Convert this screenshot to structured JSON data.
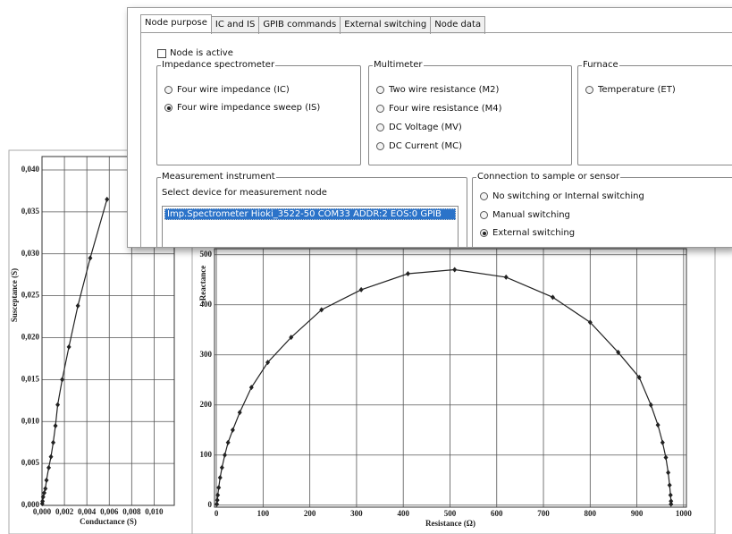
{
  "chart_data": [
    {
      "type": "line",
      "x_label": "Conductance (S)",
      "y_label": "Susceptance (S)",
      "color": "#222222",
      "grid": true,
      "x": [
        2e-05,
        5e-05,
        0.0001,
        0.0002,
        0.0003,
        0.0004,
        0.0006,
        0.0008,
        0.001,
        0.0012,
        0.0014,
        0.0018,
        0.0024,
        0.0032,
        0.0043,
        0.0058
      ],
      "values": [
        0.0002,
        0.0005,
        0.001,
        0.0015,
        0.002,
        0.003,
        0.0045,
        0.0058,
        0.0075,
        0.0095,
        0.012,
        0.015,
        0.0189,
        0.0238,
        0.0295,
        0.0365
      ],
      "xlim": [
        0,
        0.0118
      ],
      "ylim": [
        0,
        0.0416
      ],
      "xticks": [
        {
          "value": 0,
          "label": "0,000"
        },
        {
          "value": 0.002,
          "label": "0,002"
        },
        {
          "value": 0.004,
          "label": "0,004"
        },
        {
          "value": 0.006,
          "label": "0,006"
        },
        {
          "value": 0.008,
          "label": "0,008"
        },
        {
          "value": 0.01,
          "label": "0,010"
        }
      ],
      "yticks": [
        {
          "value": 0,
          "label": "0,000"
        },
        {
          "value": 0.005,
          "label": "0,005"
        },
        {
          "value": 0.01,
          "label": "0,010"
        },
        {
          "value": 0.015,
          "label": "0,015"
        },
        {
          "value": 0.02,
          "label": "0,020"
        },
        {
          "value": 0.025,
          "label": "0,025"
        },
        {
          "value": 0.03,
          "label": "0,030"
        },
        {
          "value": 0.035,
          "label": "0,035"
        },
        {
          "value": 0.04,
          "label": "0,040"
        }
      ]
    },
    {
      "type": "line",
      "x_label": "Resistance (Ω)",
      "y_label": "-Reactance",
      "color": "#222222",
      "grid": true,
      "x": [
        1,
        2,
        3,
        5,
        8,
        12,
        18,
        25,
        35,
        50,
        75,
        110,
        160,
        225,
        310,
        410,
        510,
        620,
        720,
        800,
        860,
        905,
        930,
        945,
        955,
        962,
        967,
        970,
        972,
        973,
        973
      ],
      "values": [
        2,
        10,
        20,
        35,
        55,
        75,
        100,
        125,
        150,
        185,
        235,
        285,
        335,
        390,
        430,
        462,
        470,
        455,
        415,
        365,
        305,
        255,
        200,
        160,
        125,
        95,
        65,
        40,
        20,
        8,
        2
      ],
      "xlim": [
        -4,
        1006
      ],
      "ylim": [
        -4,
        512
      ],
      "xticks": [
        0,
        100,
        200,
        300,
        400,
        500,
        600,
        700,
        800,
        900,
        1000
      ],
      "yticks": [
        0,
        100,
        200,
        300,
        400,
        500
      ]
    }
  ],
  "dialog": {
    "tabs": [
      "Node purpose",
      "IC and IS",
      "GPIB commands",
      "External switching",
      "Node data"
    ],
    "active_tab": 0,
    "checkbox": {
      "label": "Node is active",
      "checked": false
    },
    "impedance": {
      "title": "Impedance spectrometer",
      "options": [
        "Four wire impedance (IC)",
        "Four wire impedance sweep (IS)"
      ],
      "selected": 1
    },
    "multimeter": {
      "title": "Multimeter",
      "options": [
        "Two wire resistance (M2)",
        "Four wire resistance (M4)",
        "DC Voltage (MV)",
        "DC Current (MC)"
      ],
      "selected": null
    },
    "furnace": {
      "title": "Furnace",
      "options": [
        "Temperature (ET)"
      ],
      "selected": null
    },
    "instrument": {
      "title": "Measurement instrument",
      "prompt": "Select device for measurement node",
      "devices": [
        "Imp.Spectrometer Hioki_3522-50 COM33 ADDR:2 EOS:0 GPIB"
      ]
    },
    "connection": {
      "title": "Connection to sample or sensor",
      "options": [
        "No switching or Internal switching",
        "Manual switching",
        "External switching"
      ],
      "selected": 2
    }
  }
}
